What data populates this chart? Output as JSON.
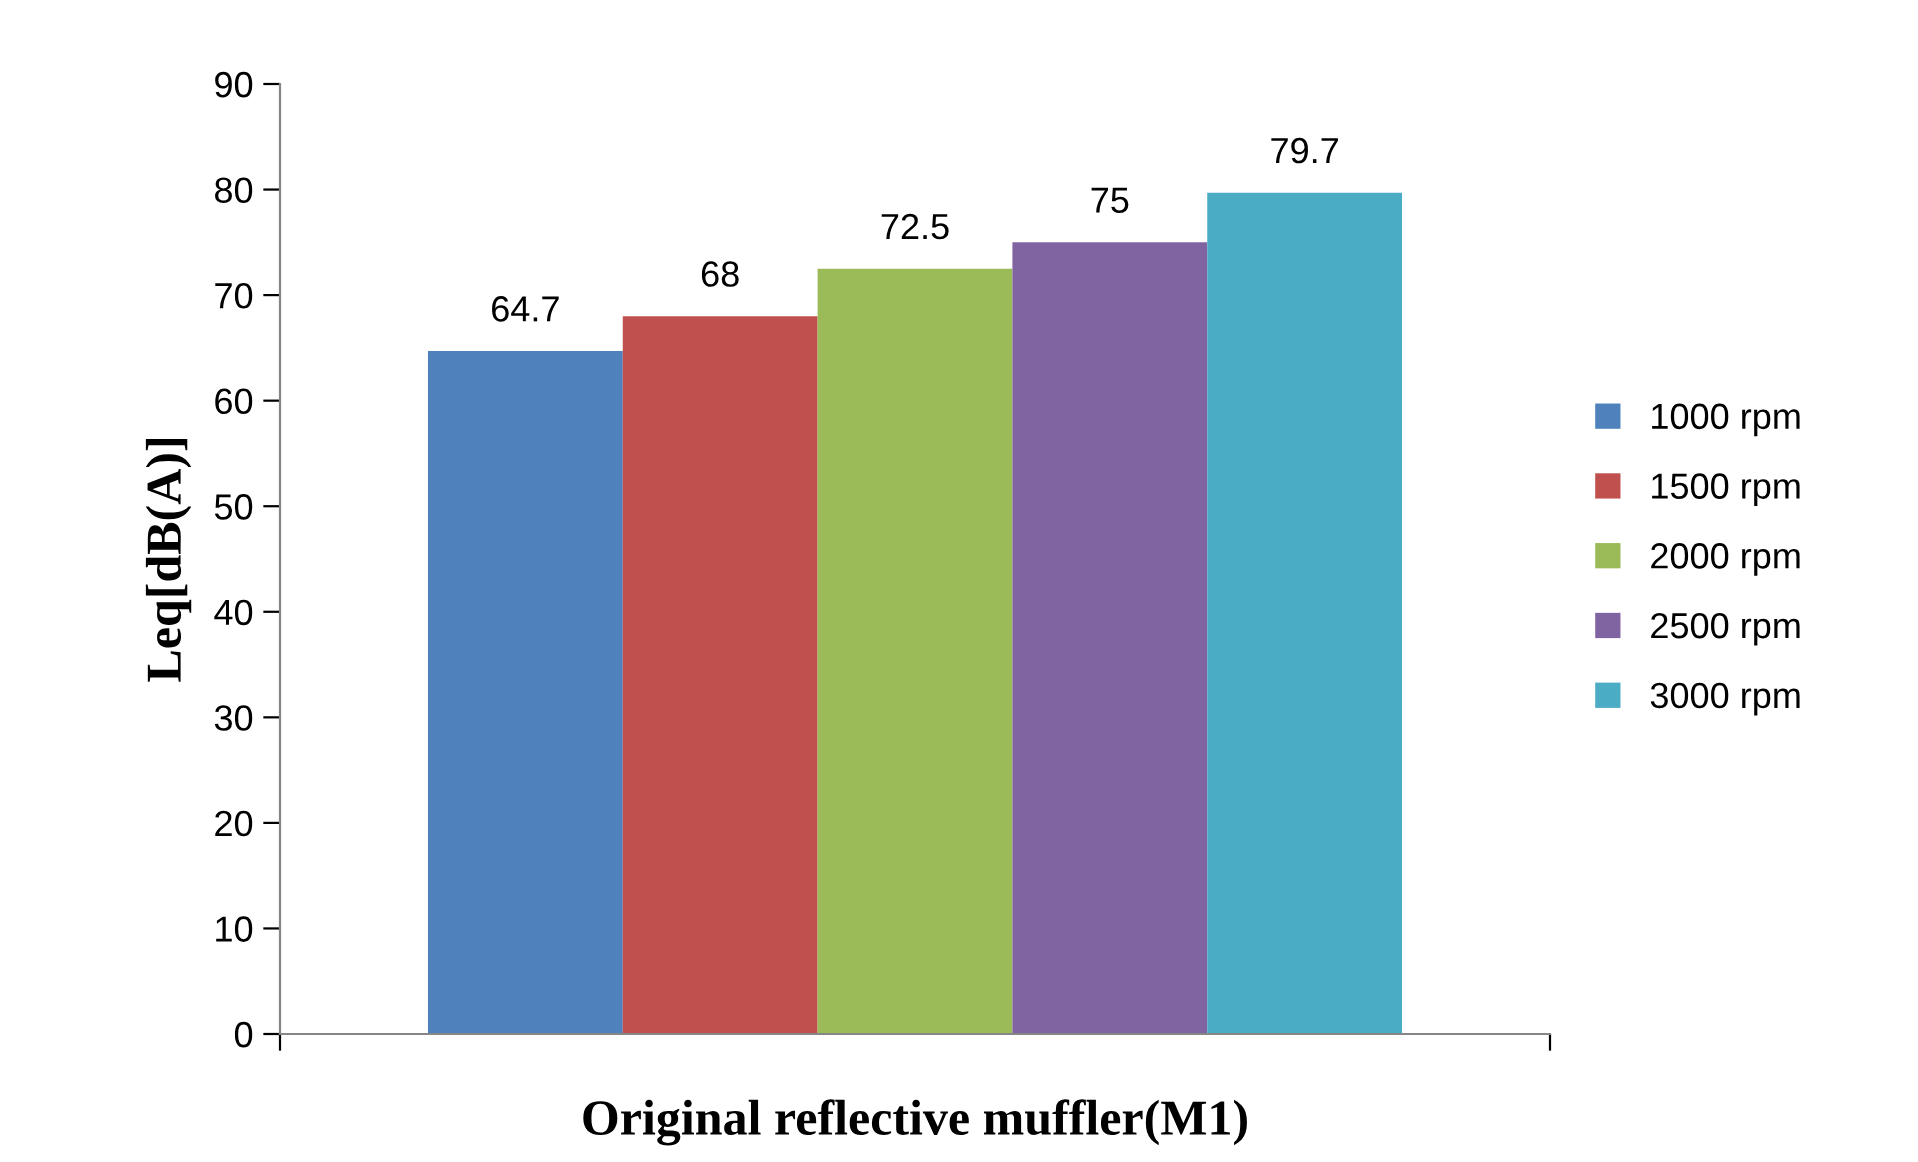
{
  "chart_data": {
    "type": "bar",
    "xlabel": "Original reflective muffler(M1)",
    "ylabel": "Leq[dB(A)]",
    "categories": [
      null
    ],
    "series": [
      {
        "name": "1000 rpm",
        "color": "#4f81bd",
        "values": [
          64.7
        ]
      },
      {
        "name": "1500 rpm",
        "color": "#c0504d",
        "values": [
          68
        ]
      },
      {
        "name": "2000 rpm",
        "color": "#9bbb59",
        "values": [
          72.5
        ]
      },
      {
        "name": "2500 rpm",
        "color": "#8064a2",
        "values": [
          75
        ]
      },
      {
        "name": "3000 rpm",
        "color": "#4bacc6",
        "values": [
          79.7
        ]
      }
    ],
    "ylim": [
      0,
      90
    ],
    "yticks": [
      0,
      10,
      20,
      30,
      40,
      50,
      60,
      70,
      80,
      90
    ],
    "data_labels": true,
    "grid": false,
    "legend": "right"
  }
}
